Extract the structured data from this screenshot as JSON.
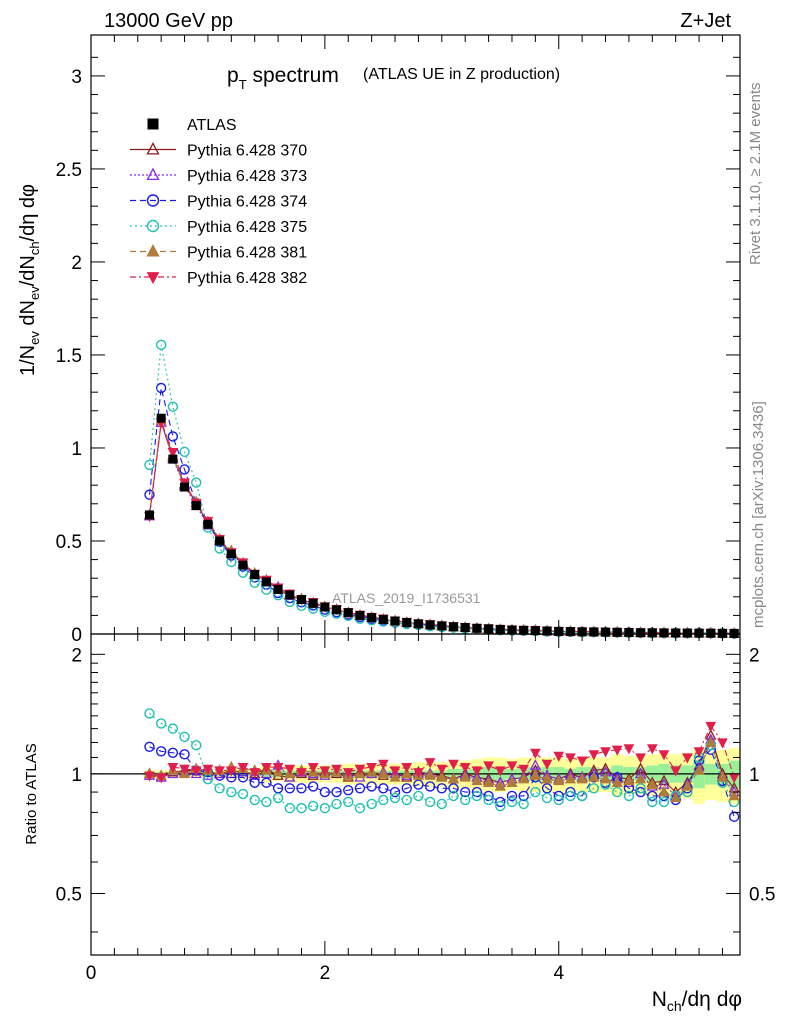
{
  "header": {
    "energy_label": "13000 GeV pp",
    "process_label": "Z+Jet"
  },
  "side_labels": {
    "rivet": "Rivet 3.1.10, ≥ 2.1M events",
    "mcplots": "mcplots.cern.ch [arXiv:1306.3436]"
  },
  "main_panel": {
    "title_main": "p",
    "title_sub": "T",
    "title_rest": " spectrum",
    "title_paren": "(ATLAS UE in Z production)",
    "watermark": "ATLAS_2019_I1736531",
    "y_axis_label": "1/N_ev dN_ev/dN_ch/dη dφ",
    "y_ticks": [
      "0",
      "0.5",
      "1",
      "1.5",
      "2",
      "2.5",
      "3"
    ]
  },
  "ratio_panel": {
    "y_axis_label": "Ratio to ATLAS",
    "y_ticks": [
      "0.5",
      "1",
      "2"
    ]
  },
  "x_axis": {
    "label": "N_ch/dη dφ",
    "ticks": [
      "0",
      "2",
      "4"
    ]
  },
  "legend": [
    {
      "label": "ATLAS",
      "color": "#000000",
      "marker": "square-filled"
    },
    {
      "label": "Pythia 6.428 370",
      "color": "#8b1a1a",
      "marker": "triangle-open"
    },
    {
      "label": "Pythia 6.428 373",
      "color": "#8a2be2",
      "marker": "triangle-open"
    },
    {
      "label": "Pythia 6.428 374",
      "color": "#1a1ae6",
      "marker": "circle-open"
    },
    {
      "label": "Pythia 6.428 375",
      "color": "#20c0b0",
      "marker": "circle-open"
    },
    {
      "label": "Pythia 6.428 381",
      "color": "#b07a3a",
      "marker": "triangle-filled"
    },
    {
      "label": "Pythia 6.428 382",
      "color": "#e0204a",
      "marker": "triangledown-filled"
    }
  ],
  "chart_data": {
    "type": "scatter",
    "title": "pT spectrum (ATLAS UE in Z production)",
    "xlabel": "N_ch/dη dφ",
    "ylabel": "1/N_ev dN_ev/dN_ch/dη dφ",
    "xlim": [
      0,
      5.55
    ],
    "ylim": [
      0,
      3.22
    ],
    "ratio_ylim": [
      0.35,
      2.25
    ],
    "x": [
      0.5,
      0.6,
      0.7,
      0.8,
      0.9,
      1.0,
      1.1,
      1.2,
      1.3,
      1.4,
      1.5,
      1.6,
      1.7,
      1.8,
      1.9,
      2.0,
      2.1,
      2.2,
      2.3,
      2.4,
      2.5,
      2.6,
      2.7,
      2.8,
      2.9,
      3.0,
      3.1,
      3.2,
      3.3,
      3.4,
      3.5,
      3.6,
      3.7,
      3.8,
      3.9,
      4.0,
      4.1,
      4.2,
      4.3,
      4.4,
      4.5,
      4.6,
      4.7,
      4.8,
      4.9,
      5.0,
      5.1,
      5.2,
      5.3,
      5.4,
      5.5
    ],
    "data_values": [
      0.64,
      1.16,
      0.94,
      0.79,
      0.69,
      0.59,
      0.5,
      0.43,
      0.37,
      0.32,
      0.28,
      0.24,
      0.21,
      0.185,
      0.165,
      0.145,
      0.13,
      0.115,
      0.1,
      0.088,
      0.078,
      0.07,
      0.062,
      0.055,
      0.049,
      0.044,
      0.039,
      0.035,
      0.031,
      0.028,
      0.025,
      0.022,
      0.02,
      0.018,
      0.016,
      0.014,
      0.013,
      0.012,
      0.011,
      0.01,
      0.009,
      0.008,
      0.007,
      0.0065,
      0.006,
      0.0055,
      0.005,
      0.0045,
      0.004,
      0.0035,
      0.003
    ],
    "band_inner": [
      0.01,
      0.01,
      0.01,
      0.01,
      0.01,
      0.01,
      0.01,
      0.01,
      0.01,
      0.01,
      0.02,
      0.02,
      0.02,
      0.02,
      0.02,
      0.02,
      0.02,
      0.02,
      0.02,
      0.02,
      0.02,
      0.02,
      0.02,
      0.02,
      0.02,
      0.02,
      0.03,
      0.03,
      0.03,
      0.04,
      0.04,
      0.03,
      0.04,
      0.04,
      0.04,
      0.04,
      0.03,
      0.04,
      0.04,
      0.03,
      0.05,
      0.04,
      0.04,
      0.05,
      0.06,
      0.05,
      0.05,
      0.08,
      0.06,
      0.06,
      0.08
    ],
    "band_outer": [
      0.02,
      0.02,
      0.02,
      0.02,
      0.02,
      0.02,
      0.02,
      0.03,
      0.03,
      0.03,
      0.05,
      0.04,
      0.05,
      0.05,
      0.05,
      0.05,
      0.05,
      0.06,
      0.06,
      0.06,
      0.06,
      0.06,
      0.06,
      0.07,
      0.07,
      0.07,
      0.08,
      0.08,
      0.09,
      0.1,
      0.1,
      0.09,
      0.1,
      0.1,
      0.1,
      0.1,
      0.09,
      0.1,
      0.1,
      0.1,
      0.12,
      0.11,
      0.11,
      0.12,
      0.13,
      0.12,
      0.13,
      0.16,
      0.14,
      0.15,
      0.16
    ],
    "series": [
      {
        "name": "Pythia 6.428 370",
        "ratio": [
          1.0,
          0.98,
          1.01,
          1.02,
          1.02,
          1.01,
          1.0,
          1.02,
          1.01,
          1.0,
          1.03,
          0.99,
          0.98,
          1.0,
          0.99,
          1.01,
          1.0,
          0.98,
          1.01,
          1.0,
          0.99,
          1.0,
          0.98,
          1.01,
          1.0,
          0.99,
          0.97,
          1.0,
          0.98,
          0.97,
          0.95,
          0.97,
          0.98,
          1.02,
          0.99,
          0.97,
          1.0,
          0.98,
          1.02,
          1.03,
          0.98,
          0.97,
          1.03,
          0.95,
          0.96,
          0.9,
          0.95,
          1.05,
          1.25,
          1.0,
          0.92
        ]
      },
      {
        "name": "Pythia 6.428 373",
        "ratio": [
          0.99,
          0.98,
          1.0,
          1.01,
          1.0,
          0.99,
          1.0,
          1.0,
          1.01,
          0.99,
          1.0,
          1.05,
          0.98,
          1.01,
          1.0,
          0.99,
          1.01,
          1.0,
          0.98,
          1.0,
          1.01,
          1.0,
          0.99,
          1.0,
          1.0,
          0.98,
          0.97,
          0.99,
          0.98,
          0.96,
          0.95,
          0.97,
          0.98,
          1.05,
          0.99,
          0.97,
          0.99,
          0.98,
          1.0,
          1.01,
          0.97,
          0.95,
          1.0,
          0.93,
          0.94,
          0.88,
          0.94,
          1.04,
          1.22,
          0.98,
          0.9
        ]
      },
      {
        "name": "Pythia 6.428 374",
        "ratio": [
          1.17,
          1.14,
          1.13,
          1.12,
          1.02,
          1.01,
          0.99,
          0.98,
          0.98,
          0.95,
          0.95,
          0.92,
          0.92,
          0.92,
          0.93,
          0.9,
          0.9,
          0.91,
          0.92,
          0.93,
          0.92,
          0.9,
          0.92,
          0.94,
          0.93,
          0.92,
          0.92,
          0.9,
          0.9,
          0.88,
          0.85,
          0.88,
          0.88,
          0.98,
          0.92,
          0.88,
          0.9,
          0.88,
          0.98,
          0.95,
          0.98,
          0.92,
          0.9,
          0.88,
          0.88,
          0.86,
          0.92,
          1.08,
          1.15,
          0.96,
          0.78
        ]
      },
      {
        "name": "Pythia 6.428 375",
        "ratio": [
          1.42,
          1.34,
          1.3,
          1.24,
          1.18,
          0.97,
          0.92,
          0.9,
          0.89,
          0.86,
          0.85,
          0.87,
          0.82,
          0.82,
          0.83,
          0.82,
          0.84,
          0.85,
          0.82,
          0.84,
          0.86,
          0.87,
          0.86,
          0.88,
          0.85,
          0.84,
          0.88,
          0.86,
          0.88,
          0.86,
          0.83,
          0.85,
          0.84,
          0.9,
          0.87,
          0.86,
          0.88,
          0.88,
          0.92,
          0.94,
          0.9,
          0.88,
          0.92,
          0.85,
          0.85,
          0.88,
          0.9,
          1.1,
          1.18,
          0.95,
          0.85
        ]
      },
      {
        "name": "Pythia 6.428 381",
        "ratio": [
          1.0,
          0.99,
          1.02,
          1.0,
          1.03,
          1.02,
          1.02,
          1.04,
          1.03,
          1.02,
          1.02,
          1.01,
          1.0,
          1.02,
          1.01,
          1.0,
          1.01,
          0.99,
          1.0,
          1.01,
          1.0,
          0.98,
          1.0,
          0.99,
          0.99,
          0.98,
          0.97,
          0.98,
          0.96,
          0.95,
          0.93,
          0.95,
          0.97,
          0.99,
          0.97,
          0.96,
          0.97,
          0.97,
          0.98,
          0.97,
          0.95,
          0.96,
          0.97,
          0.94,
          0.9,
          0.87,
          0.93,
          1.02,
          1.2,
          0.98,
          0.88
        ]
      },
      {
        "name": "Pythia 6.428 382",
        "ratio": [
          0.99,
          0.98,
          1.04,
          1.03,
          1.02,
          1.03,
          1.02,
          1.02,
          1.04,
          1.01,
          1.04,
          1.04,
          1.03,
          1.01,
          1.04,
          1.02,
          1.03,
          1.01,
          1.03,
          1.04,
          1.06,
          1.02,
          1.04,
          1.01,
          1.07,
          1.03,
          1.06,
          1.04,
          1.02,
          1.05,
          1.02,
          1.05,
          1.03,
          1.13,
          1.06,
          1.11,
          1.1,
          1.08,
          1.12,
          1.14,
          1.15,
          1.16,
          1.1,
          1.16,
          1.12,
          1.02,
          1.1,
          1.14,
          1.32,
          1.2,
          0.98
        ]
      }
    ]
  }
}
